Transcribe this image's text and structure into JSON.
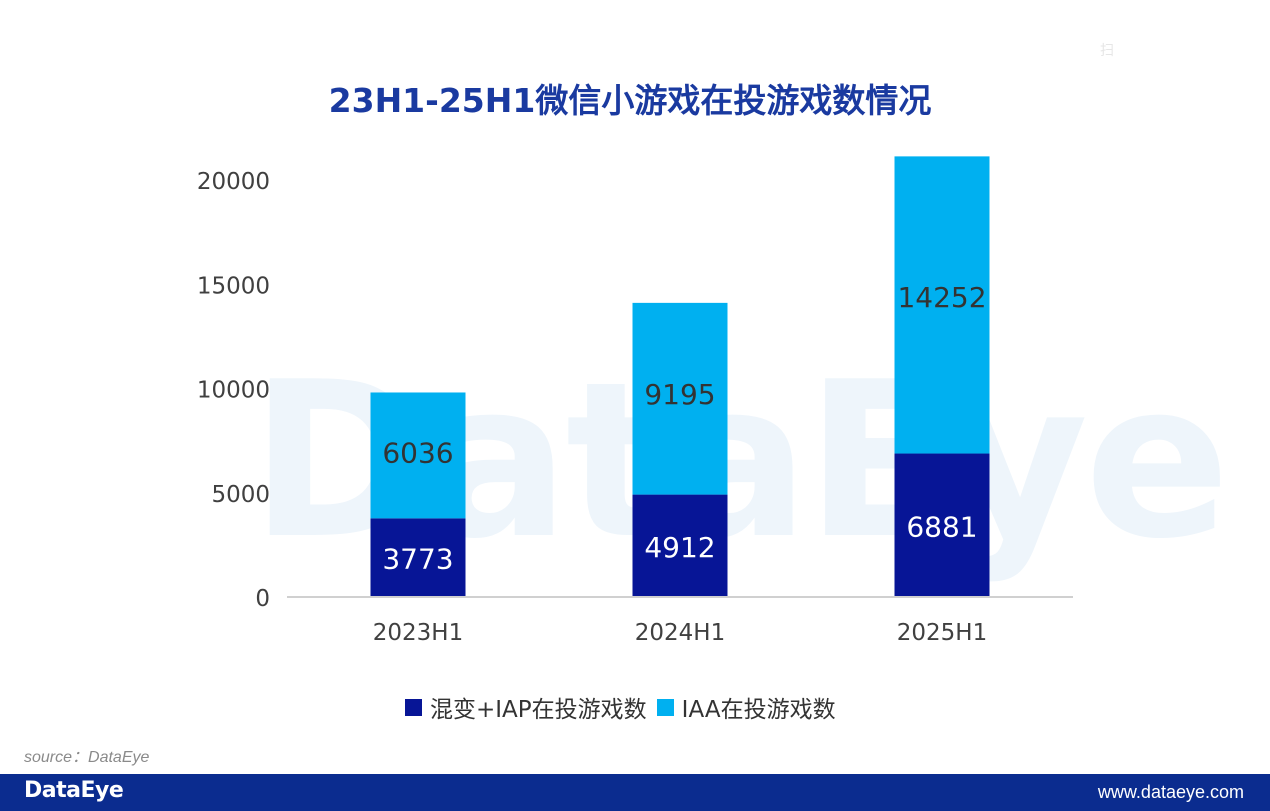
{
  "watermark": "DataEye",
  "colors": {
    "iap": "#071596",
    "iaa": "#00b0f0",
    "footer": "#0b2c8f",
    "title": "#1a3aa0"
  },
  "chart_data": {
    "type": "bar",
    "stacked": true,
    "title": "23H1-25H1微信小游戏在投游戏数情况",
    "categories": [
      "2023H1",
      "2024H1",
      "2025H1"
    ],
    "series": [
      {
        "name": "混变+IAP在投游戏数",
        "values": [
          3773,
          4912,
          6881
        ],
        "color": "#071596"
      },
      {
        "name": "IAA在投游戏数",
        "values": [
          6036,
          9195,
          14252
        ],
        "color": "#00b0f0"
      }
    ],
    "ylim": [
      0,
      20000
    ],
    "yticks": [
      0,
      5000,
      10000,
      15000,
      20000
    ],
    "grid": false,
    "legend": "bottom"
  },
  "source": "source：DataEye",
  "footer": {
    "logo": "DataEye",
    "url": "www.dataeye.com"
  }
}
